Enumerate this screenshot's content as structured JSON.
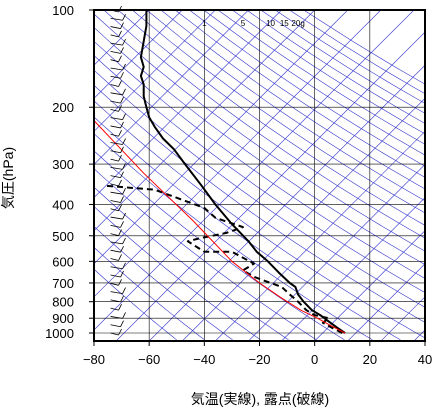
{
  "chart_data": {
    "type": "line",
    "subtype": "skew-t log-p sounding",
    "xlabel": "気温(実線), 露点(破線)",
    "ylabel": "気圧(hPa)",
    "xlim": [
      -80,
      40
    ],
    "ylim_hpa": [
      1050,
      100
    ],
    "y_scale": "log",
    "x_ticks": [
      -80,
      -60,
      -40,
      -20,
      0,
      20,
      40
    ],
    "x_tick_labels": [
      "−80",
      "−60",
      "−40",
      "−20",
      "0",
      "20",
      "40"
    ],
    "y_ticks": [
      100,
      200,
      300,
      400,
      500,
      600,
      700,
      800,
      900,
      1000
    ],
    "y_tick_labels": [
      "100",
      "200",
      "300",
      "400",
      "500",
      "600",
      "700",
      "800",
      "900",
      "1000"
    ],
    "mixing_ratio_labels": [
      "1",
      "5",
      "10",
      "15",
      "20g"
    ],
    "mixing_ratio_values": [
      1,
      5,
      10,
      15,
      20
    ],
    "colors": {
      "temperature": "#000000",
      "dewpoint": "#000000",
      "parcel": "#ff0000",
      "reference_lines": "#3333cc",
      "grid": "#000000"
    },
    "series": [
      {
        "key": "temperature",
        "style": "solid",
        "x_temp_c": [
          11.0,
          8.0,
          5.0,
          2.0,
          -1.0,
          -4.0,
          -6.0,
          -7.0,
          -9.0,
          -13.0,
          -17.0,
          -21.0,
          -24.0,
          -30.0,
          -36.0,
          -41.0,
          -47.0,
          -51.0,
          -55.0,
          -58.0,
          -60.0,
          -61.0,
          -62.0,
          -62.0,
          -63.0,
          -62.0,
          -63.0,
          -62.0,
          -61.0,
          -61.0
        ],
        "y_pressure_hpa": [
          1000,
          960,
          920,
          880,
          850,
          800,
          760,
          720,
          700,
          650,
          600,
          560,
          520,
          460,
          400,
          350,
          300,
          270,
          250,
          230,
          215,
          200,
          185,
          170,
          160,
          150,
          140,
          125,
          112,
          100
        ]
      },
      {
        "key": "dewpoint",
        "style": "dashed",
        "segments": [
          {
            "x_temp_c": [
              10.0,
              6.0,
              3.0,
              5.0,
              0.0,
              -3.0,
              -6.0,
              -9.0,
              -12.0,
              -18.0,
              -22.0,
              -26.0,
              -22.0,
              -30.0,
              -40.0,
              -46.0,
              -42.0,
              -32.0,
              -26.0,
              -36.0,
              -40.0,
              -58.0,
              -76.0
            ],
            "y_pressure_hpa": [
              1000,
              960,
              930,
              900,
              880,
              850,
              800,
              760,
              720,
              690,
              670,
              640,
              610,
              560,
              560,
              520,
              510,
              490,
              470,
              440,
              410,
              360,
              350
            ]
          }
        ]
      },
      {
        "key": "parcel",
        "style": "solid",
        "x_temp_c": [
          11.0,
          6.0,
          1.0,
          -5.0,
          -12.0,
          -20.0,
          -30.0,
          -44.0,
          -62.0,
          -80.0
        ],
        "y_pressure_hpa": [
          1000,
          950,
          900,
          850,
          780,
          700,
          600,
          450,
          320,
          220
        ]
      }
    ],
    "wind_barbs_count": 40
  }
}
